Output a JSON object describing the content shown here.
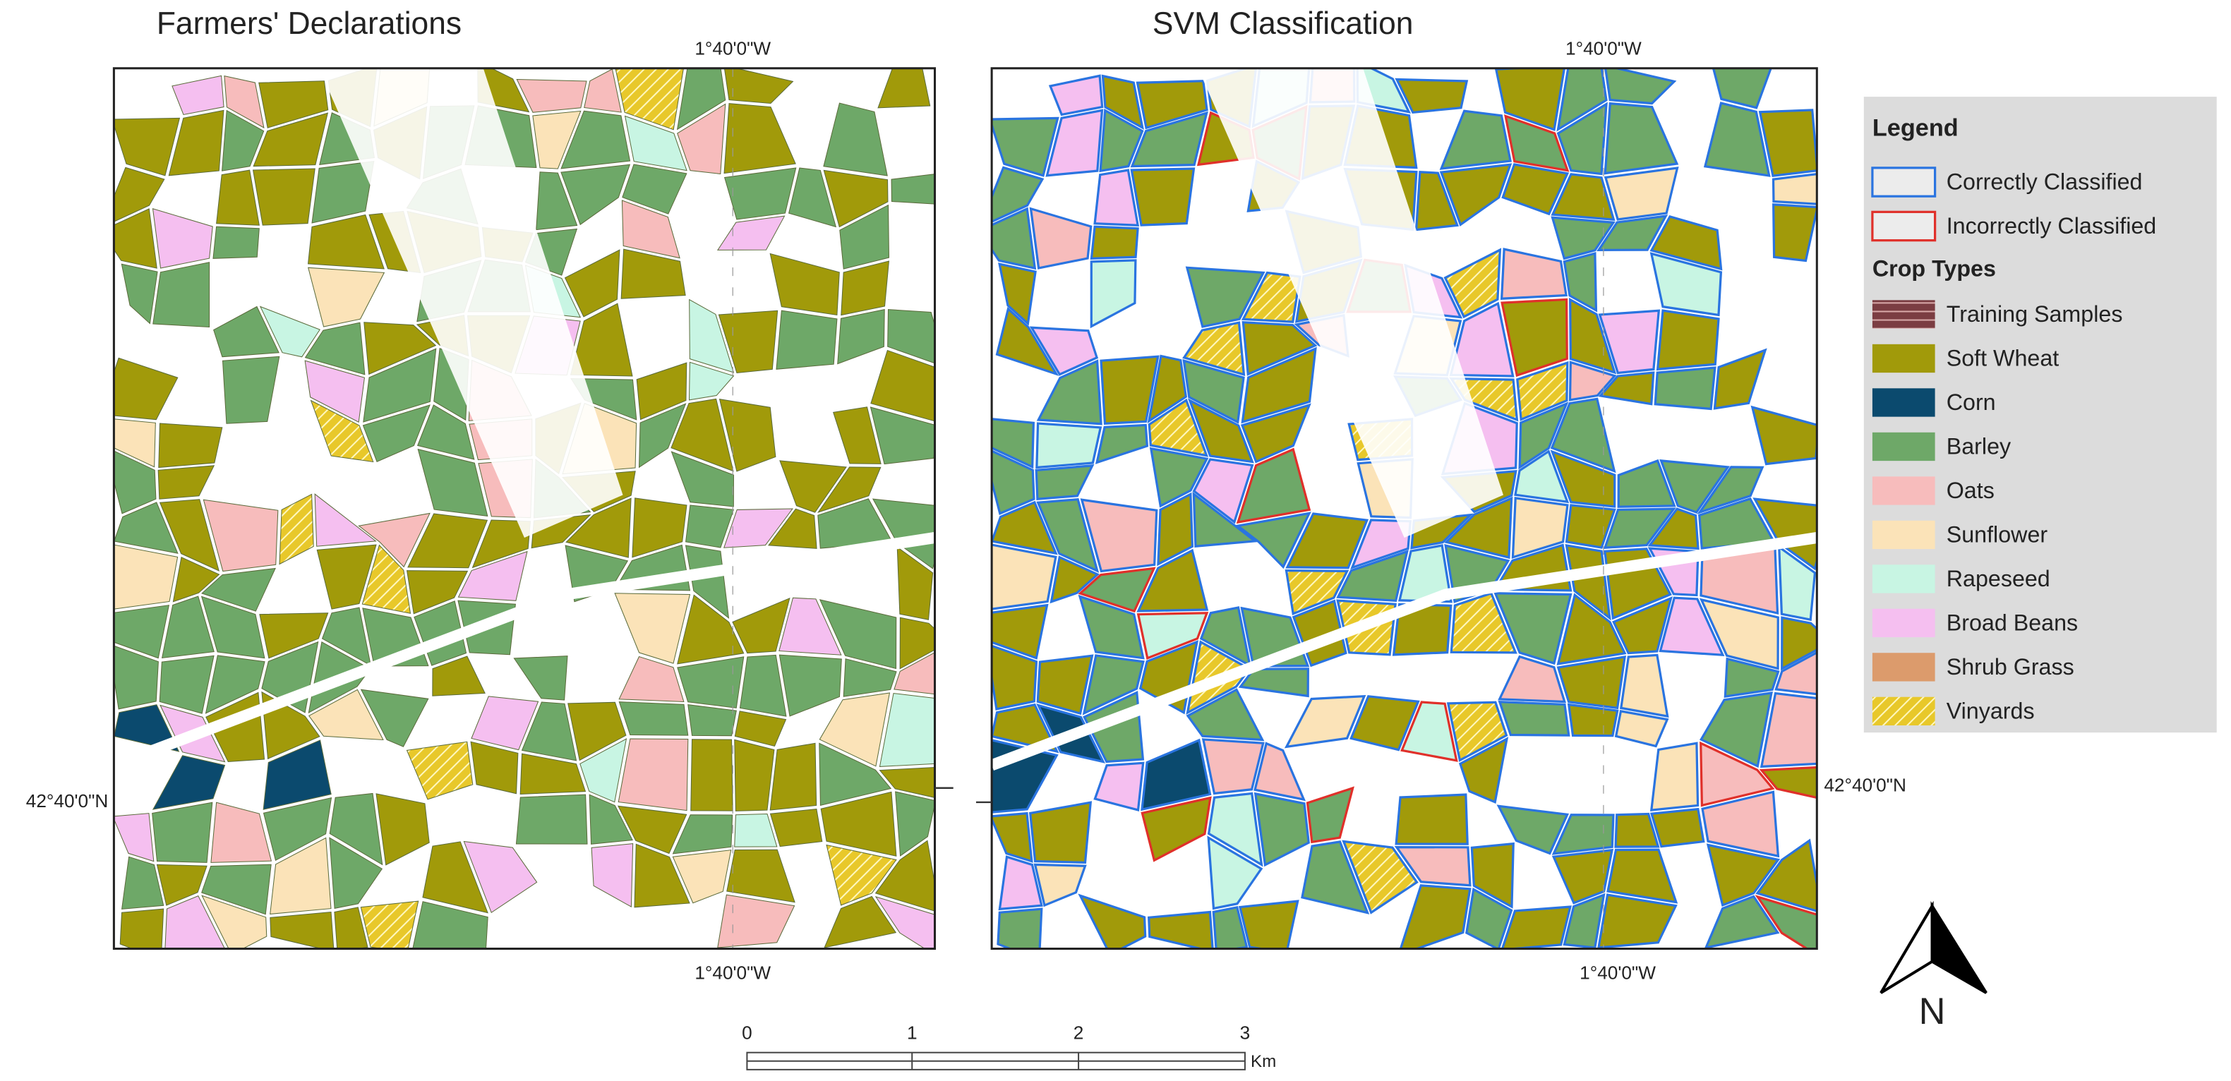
{
  "panels": [
    {
      "title": "Farmers' Declarations",
      "top_label": "1°40'0\"W",
      "bottom_label": "1°40'0\"W",
      "side_label": "42°40'0\"N"
    },
    {
      "title": "SVM Classification",
      "top_label": "1°40'0\"W",
      "bottom_label": "1°40'0\"W",
      "side_label": "42°40'0\"N"
    }
  ],
  "legend": {
    "title": "Legend",
    "outline_items": [
      {
        "label": "Correctly Classified",
        "color": "#2a74e0"
      },
      {
        "label": "Incorrectly Classified",
        "color": "#e0302a"
      }
    ],
    "crop_heading": "Crop Types",
    "crop_items": [
      {
        "label": "Training Samples",
        "color": "#7b3d42"
      },
      {
        "label": "Soft Wheat",
        "color": "#a19a0a"
      },
      {
        "label": "Corn",
        "color": "#0b4a6e"
      },
      {
        "label": "Barley",
        "color": "#6ea868"
      },
      {
        "label": "Oats",
        "color": "#f7bcbc"
      },
      {
        "label": "Sunflower",
        "color": "#fbe3b8"
      },
      {
        "label": "Rapeseed",
        "color": "#c8f5e3"
      },
      {
        "label": "Broad Beans",
        "color": "#f5bff0"
      },
      {
        "label": "Shrub Grass",
        "color": "#dc9b6c"
      },
      {
        "label": "Vinyards",
        "color": "#e8c82a"
      }
    ]
  },
  "scale_bar": {
    "labels": [
      "0",
      "1",
      "2",
      "3"
    ],
    "unit": "Km"
  },
  "north_label": "N"
}
